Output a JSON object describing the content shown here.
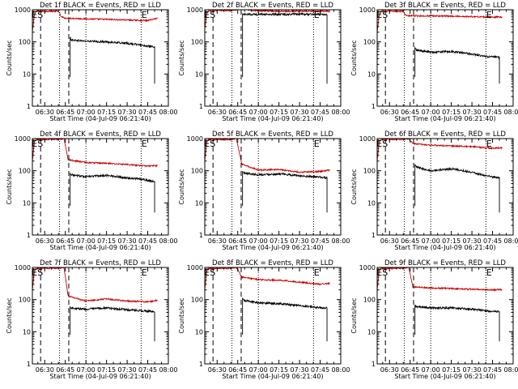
{
  "figure": {
    "background": "#ffffff"
  },
  "style": {
    "events_color": "#000000",
    "lld_color": "#cc0000",
    "axis_color": "#000000"
  },
  "shared": {
    "xticks": [
      "06:30",
      "06:45",
      "07:00",
      "07:15",
      "07:30",
      "07:45",
      "08:00"
    ],
    "xtick_minutes": [
      30,
      45,
      60,
      75,
      90,
      105,
      120
    ],
    "xlim_minutes": [
      21,
      120
    ],
    "yticks": [
      "1",
      "10",
      "100",
      "1000"
    ],
    "ytick_values": [
      1,
      10,
      100,
      1000
    ],
    "ylim": [
      1,
      1000
    ],
    "yscale": "log",
    "xlabel": "Start Time (04-Jul-09 06:21:40)",
    "ylabel": "Counts/sec",
    "markers": {
      "eclipse_end": "E",
      "saa_start": "S",
      "eclipse_start": "E"
    },
    "marker_minutes": {
      "eclipse_end": 22.5,
      "saa_start": 25.0,
      "saa_end": 42.0,
      "eclipse_start": 99.5
    },
    "dash_minutes": [
      27.0,
      47.5
    ],
    "dot_minutes": [
      40.8,
      100.2
    ],
    "mid_dot_minutes": 60
  },
  "chart_data": [
    {
      "type": "line",
      "title": "Det 1f BLACK = Events, RED = LLD",
      "series": [
        {
          "name": "LLD",
          "color": "#cc0000",
          "x": [
            21,
            22.5,
            23.5,
            40,
            42,
            45,
            60,
            75,
            90,
            105,
            112
          ],
          "y": [
            200,
            700,
            900,
            900,
            600,
            550,
            520,
            500,
            480,
            460,
            550
          ]
        },
        {
          "name": "Events",
          "color": "#000000",
          "x": [
            48.5,
            49.5,
            60,
            75,
            90,
            100,
            110
          ],
          "y": [
            135,
            115,
            105,
            100,
            90,
            80,
            68
          ]
        }
      ]
    },
    {
      "type": "line",
      "title": "Det 2f BLACK = Events, RED = LLD",
      "series": [
        {
          "name": "LLD",
          "color": "#cc0000",
          "x": [
            21,
            22.5,
            24,
            40,
            44,
            47,
            55,
            75,
            90,
            112
          ],
          "y": [
            250,
            800,
            950,
            950,
            1000,
            1100,
            950,
            900,
            900,
            900
          ]
        },
        {
          "name": "Events",
          "color": "#000000",
          "x": [
            48.5,
            49.5,
            60,
            75,
            90,
            100,
            110
          ],
          "y": [
            720,
            720,
            720,
            720,
            720,
            720,
            720
          ]
        }
      ]
    },
    {
      "type": "line",
      "title": "Det 3f BLACK = Events, RED = LLD",
      "series": [
        {
          "name": "LLD",
          "color": "#cc0000",
          "x": [
            21,
            22.5,
            24,
            40,
            42,
            45,
            60,
            75,
            90,
            105,
            112
          ],
          "y": [
            200,
            700,
            900,
            900,
            650,
            650,
            640,
            630,
            610,
            590,
            600
          ]
        },
        {
          "name": "Events",
          "color": "#000000",
          "x": [
            48.5,
            49.5,
            60,
            75,
            90,
            100,
            110
          ],
          "y": [
            65,
            55,
            48,
            50,
            42,
            35,
            33
          ]
        }
      ]
    },
    {
      "type": "line",
      "title": "Det 4f BLACK = Events, RED = LLD",
      "series": [
        {
          "name": "LLD",
          "color": "#cc0000",
          "x": [
            21,
            22.5,
            24,
            40,
            44,
            47,
            60,
            75,
            90,
            105,
            112
          ],
          "y": [
            200,
            800,
            950,
            950,
            1000,
            220,
            180,
            170,
            155,
            140,
            145
          ]
        },
        {
          "name": "Events",
          "color": "#000000",
          "x": [
            48.5,
            49.5,
            60,
            75,
            90,
            100,
            110
          ],
          "y": [
            85,
            75,
            65,
            72,
            60,
            55,
            45
          ]
        }
      ]
    },
    {
      "type": "line",
      "title": "Det 5f BLACK = Events, RED = LLD",
      "series": [
        {
          "name": "LLD",
          "color": "#cc0000",
          "x": [
            21,
            22.5,
            24,
            40,
            44,
            48,
            60,
            75,
            90,
            105,
            112
          ],
          "y": [
            200,
            800,
            950,
            950,
            1000,
            160,
            105,
            110,
            90,
            95,
            105
          ]
        },
        {
          "name": "Events",
          "color": "#000000",
          "x": [
            48.5,
            49.5,
            60,
            75,
            90,
            100,
            110
          ],
          "y": [
            95,
            85,
            75,
            80,
            70,
            65,
            60
          ]
        }
      ]
    },
    {
      "type": "line",
      "title": "Det 6f BLACK = Events, RED = LLD",
      "series": [
        {
          "name": "LLD",
          "color": "#cc0000",
          "x": [
            21,
            22.5,
            24,
            40,
            44,
            47,
            60,
            75,
            90,
            105,
            112
          ],
          "y": [
            200,
            800,
            950,
            950,
            1000,
            700,
            620,
            590,
            560,
            500,
            520
          ]
        },
        {
          "name": "Events",
          "color": "#000000",
          "x": [
            48.5,
            49.5,
            60,
            75,
            90,
            100,
            110
          ],
          "y": [
            150,
            130,
            100,
            115,
            90,
            70,
            60
          ]
        }
      ]
    },
    {
      "type": "line",
      "title": "Det 7f BLACK = Events, RED = LLD",
      "series": [
        {
          "name": "LLD",
          "color": "#cc0000",
          "x": [
            21,
            22.5,
            24,
            40,
            44,
            47,
            60,
            75,
            90,
            105,
            112
          ],
          "y": [
            200,
            800,
            950,
            950,
            1000,
            130,
            90,
            105,
            90,
            85,
            95
          ]
        },
        {
          "name": "Events",
          "color": "#000000",
          "x": [
            48.5,
            49.5,
            60,
            75,
            90,
            100,
            110
          ],
          "y": [
            60,
            55,
            50,
            55,
            48,
            45,
            42
          ]
        }
      ]
    },
    {
      "type": "line",
      "title": "Det 8f BLACK = Events, RED = LLD",
      "series": [
        {
          "name": "LLD",
          "color": "#cc0000",
          "x": [
            21,
            22.5,
            24,
            40,
            44,
            48,
            60,
            75,
            90,
            105,
            112
          ],
          "y": [
            200,
            800,
            950,
            950,
            1000,
            500,
            420,
            400,
            350,
            300,
            320
          ]
        },
        {
          "name": "Events",
          "color": "#000000",
          "x": [
            48.5,
            49.5,
            60,
            75,
            90,
            100,
            110
          ],
          "y": [
            110,
            95,
            80,
            75,
            65,
            58,
            55
          ]
        }
      ]
    },
    {
      "type": "line",
      "title": "Det 9f BLACK = Events, RED = LLD",
      "series": [
        {
          "name": "LLD",
          "color": "#cc0000",
          "x": [
            21,
            22.5,
            24,
            40,
            44,
            47,
            60,
            75,
            90,
            105,
            112
          ],
          "y": [
            200,
            800,
            950,
            950,
            1000,
            250,
            230,
            220,
            210,
            200,
            205
          ]
        },
        {
          "name": "Events",
          "color": "#000000",
          "x": [
            48.5,
            49.5,
            60,
            75,
            90,
            100,
            110
          ],
          "y": [
            65,
            60,
            55,
            55,
            50,
            45,
            42
          ]
        }
      ]
    }
  ]
}
